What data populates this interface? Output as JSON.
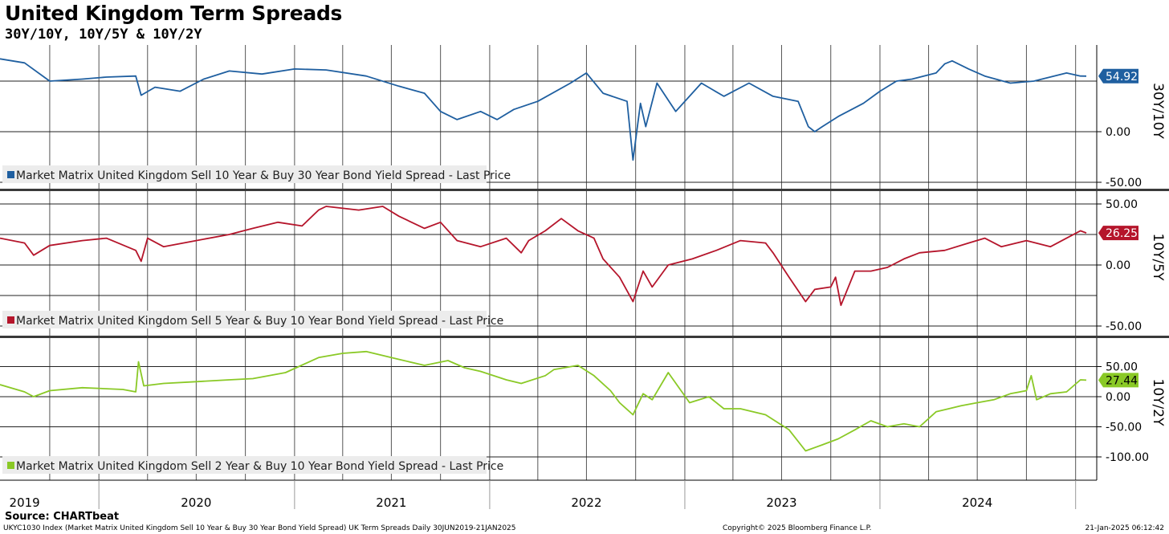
{
  "title": "United Kingdom Term Spreads",
  "subtitle": "30Y/10Y, 10Y/5Y & 10Y/2Y",
  "source": "Source: CHARTbeat",
  "footer": {
    "left": "UKYC1030 Index (Market Matrix United Kingdom Sell 10 Year & Buy 30 Year Bond Yield Spread) UK Term Spreads  Daily 30JUN2019-21JAN2025",
    "center": "Copyright© 2025 Bloomberg Finance L.P.",
    "right": "21-Jan-2025 06:12:42"
  },
  "chart_data": [
    {
      "type": "line",
      "axis_label": "30Y/10Y",
      "ylim": [
        -60,
        105
      ],
      "ytick_labels": [
        {
          "value": 0,
          "label": "0.00"
        },
        {
          "value": -50,
          "label": "-50.00"
        }
      ],
      "gridlines": [
        50,
        0,
        -50
      ],
      "series": [
        {
          "name": "Market Matrix United Kingdom Sell 10 Year & Buy 30 Year Bond Yield Spread - Last Price",
          "color": "#1f5fa0",
          "last_value_label": "54.92",
          "points": [
            [
              "2019-06-30",
              72
            ],
            [
              "2019-08-15",
              68
            ],
            [
              "2019-10-01",
              50
            ],
            [
              "2019-12-01",
              52
            ],
            [
              "2020-01-15",
              54
            ],
            [
              "2020-03-10",
              55
            ],
            [
              "2020-03-20",
              36
            ],
            [
              "2020-04-15",
              44
            ],
            [
              "2020-06-01",
              40
            ],
            [
              "2020-07-15",
              52
            ],
            [
              "2020-09-01",
              60
            ],
            [
              "2020-11-01",
              57
            ],
            [
              "2021-01-01",
              62
            ],
            [
              "2021-03-01",
              61
            ],
            [
              "2021-05-15",
              55
            ],
            [
              "2021-07-15",
              45
            ],
            [
              "2021-09-01",
              38
            ],
            [
              "2021-10-01",
              20
            ],
            [
              "2021-11-01",
              12
            ],
            [
              "2021-12-15",
              20
            ],
            [
              "2022-01-15",
              12
            ],
            [
              "2022-02-15",
              22
            ],
            [
              "2022-04-01",
              30
            ],
            [
              "2022-06-01",
              48
            ],
            [
              "2022-07-01",
              58
            ],
            [
              "2022-08-01",
              38
            ],
            [
              "2022-09-15",
              30
            ],
            [
              "2022-09-26",
              -28
            ],
            [
              "2022-10-10",
              28
            ],
            [
              "2022-10-20",
              5
            ],
            [
              "2022-11-10",
              48
            ],
            [
              "2022-12-15",
              20
            ],
            [
              "2023-02-01",
              48
            ],
            [
              "2023-03-15",
              35
            ],
            [
              "2023-05-01",
              48
            ],
            [
              "2023-06-15",
              35
            ],
            [
              "2023-08-01",
              30
            ],
            [
              "2023-08-20",
              5
            ],
            [
              "2023-09-01",
              0
            ],
            [
              "2023-09-15",
              5
            ],
            [
              "2023-10-15",
              15
            ],
            [
              "2023-12-01",
              28
            ],
            [
              "2024-01-01",
              40
            ],
            [
              "2024-02-01",
              50
            ],
            [
              "2024-03-01",
              52
            ],
            [
              "2024-04-15",
              58
            ],
            [
              "2024-05-01",
              67
            ],
            [
              "2024-05-15",
              70
            ],
            [
              "2024-06-15",
              62
            ],
            [
              "2024-07-15",
              55
            ],
            [
              "2024-09-01",
              48
            ],
            [
              "2024-10-15",
              50
            ],
            [
              "2024-12-15",
              58
            ],
            [
              "2025-01-10",
              55
            ],
            [
              "2025-01-21",
              54.92
            ]
          ]
        }
      ]
    },
    {
      "type": "line",
      "axis_label": "10Y/5Y",
      "ylim": [
        -55,
        55
      ],
      "ytick_labels": [
        {
          "value": 50,
          "label": "50.00"
        },
        {
          "value": 0,
          "label": "0.00"
        },
        {
          "value": -50,
          "label": "-50.00"
        }
      ],
      "gridlines": [
        50,
        25,
        0,
        -25,
        -50
      ],
      "series": [
        {
          "name": "Market Matrix United Kingdom Sell 5 Year & Buy 10 Year Bond Yield Spread - Last Price",
          "color": "#b5152b",
          "last_value_label": "26.25",
          "points": [
            [
              "2019-06-30",
              22
            ],
            [
              "2019-08-15",
              18
            ],
            [
              "2019-09-01",
              8
            ],
            [
              "2019-10-01",
              16
            ],
            [
              "2019-12-01",
              20
            ],
            [
              "2020-01-15",
              22
            ],
            [
              "2020-03-10",
              12
            ],
            [
              "2020-03-20",
              3
            ],
            [
              "2020-04-01",
              22
            ],
            [
              "2020-05-01",
              15
            ],
            [
              "2020-07-01",
              20
            ],
            [
              "2020-09-01",
              25
            ],
            [
              "2020-10-15",
              30
            ],
            [
              "2020-12-01",
              35
            ],
            [
              "2021-01-15",
              32
            ],
            [
              "2021-02-15",
              45
            ],
            [
              "2021-03-01",
              48
            ],
            [
              "2021-05-01",
              45
            ],
            [
              "2021-06-15",
              48
            ],
            [
              "2021-07-15",
              40
            ],
            [
              "2021-09-01",
              30
            ],
            [
              "2021-10-01",
              35
            ],
            [
              "2021-11-01",
              20
            ],
            [
              "2021-12-15",
              15
            ],
            [
              "2022-02-01",
              22
            ],
            [
              "2022-03-01",
              10
            ],
            [
              "2022-03-15",
              20
            ],
            [
              "2022-04-15",
              28
            ],
            [
              "2022-05-15",
              38
            ],
            [
              "2022-06-15",
              28
            ],
            [
              "2022-07-15",
              22
            ],
            [
              "2022-08-01",
              5
            ],
            [
              "2022-09-01",
              -10
            ],
            [
              "2022-09-26",
              -30
            ],
            [
              "2022-10-15",
              -5
            ],
            [
              "2022-11-01",
              -18
            ],
            [
              "2022-12-01",
              0
            ],
            [
              "2023-01-15",
              5
            ],
            [
              "2023-03-01",
              12
            ],
            [
              "2023-04-15",
              20
            ],
            [
              "2023-06-01",
              18
            ],
            [
              "2023-06-15",
              10
            ],
            [
              "2023-07-15",
              -10
            ],
            [
              "2023-08-15",
              -30
            ],
            [
              "2023-09-01",
              -20
            ],
            [
              "2023-10-01",
              -18
            ],
            [
              "2023-10-10",
              -10
            ],
            [
              "2023-10-20",
              -33
            ],
            [
              "2023-11-15",
              -5
            ],
            [
              "2023-12-15",
              -5
            ],
            [
              "2024-01-15",
              -2
            ],
            [
              "2024-02-15",
              5
            ],
            [
              "2024-03-15",
              10
            ],
            [
              "2024-05-01",
              12
            ],
            [
              "2024-06-15",
              18
            ],
            [
              "2024-07-15",
              22
            ],
            [
              "2024-08-15",
              15
            ],
            [
              "2024-10-01",
              20
            ],
            [
              "2024-11-15",
              15
            ],
            [
              "2024-12-15",
              22
            ],
            [
              "2025-01-10",
              28
            ],
            [
              "2025-01-21",
              26.25
            ]
          ]
        }
      ]
    },
    {
      "type": "line",
      "axis_label": "10Y/2Y",
      "ylim": [
        -120,
        90
      ],
      "ytick_labels": [
        {
          "value": 50,
          "label": "50.00"
        },
        {
          "value": 0,
          "label": "0.00"
        },
        {
          "value": -50,
          "label": "-50.00"
        },
        {
          "value": -100,
          "label": "-100.00"
        }
      ],
      "gridlines": [
        50,
        0,
        -50,
        -100
      ],
      "series": [
        {
          "name": "Market Matrix United Kingdom Sell 2 Year & Buy 10 Year Bond Yield Spread - Last Price",
          "color": "#8ac926",
          "last_value_label": "27.44",
          "points": [
            [
              "2019-06-30",
              20
            ],
            [
              "2019-08-15",
              8
            ],
            [
              "2019-09-01",
              0
            ],
            [
              "2019-10-01",
              10
            ],
            [
              "2019-12-01",
              15
            ],
            [
              "2020-02-15",
              12
            ],
            [
              "2020-03-10",
              8
            ],
            [
              "2020-03-15",
              58
            ],
            [
              "2020-03-25",
              18
            ],
            [
              "2020-05-01",
              22
            ],
            [
              "2020-07-01",
              25
            ],
            [
              "2020-09-01",
              28
            ],
            [
              "2020-10-15",
              30
            ],
            [
              "2020-12-15",
              40
            ],
            [
              "2021-02-15",
              65
            ],
            [
              "2021-04-01",
              72
            ],
            [
              "2021-05-15",
              75
            ],
            [
              "2021-07-15",
              62
            ],
            [
              "2021-09-01",
              52
            ],
            [
              "2021-10-15",
              60
            ],
            [
              "2021-11-15",
              48
            ],
            [
              "2021-12-15",
              42
            ],
            [
              "2022-02-01",
              28
            ],
            [
              "2022-03-01",
              22
            ],
            [
              "2022-04-15",
              35
            ],
            [
              "2022-05-01",
              45
            ],
            [
              "2022-06-15",
              52
            ],
            [
              "2022-07-15",
              35
            ],
            [
              "2022-08-15",
              10
            ],
            [
              "2022-09-01",
              -10
            ],
            [
              "2022-09-26",
              -30
            ],
            [
              "2022-10-15",
              5
            ],
            [
              "2022-11-01",
              -5
            ],
            [
              "2022-12-01",
              40
            ],
            [
              "2023-01-10",
              -10
            ],
            [
              "2023-02-15",
              0
            ],
            [
              "2023-03-15",
              -20
            ],
            [
              "2023-04-15",
              -20
            ],
            [
              "2023-06-01",
              -30
            ],
            [
              "2023-07-15",
              -55
            ],
            [
              "2023-08-15",
              -90
            ],
            [
              "2023-09-15",
              -80
            ],
            [
              "2023-10-15",
              -70
            ],
            [
              "2023-11-15",
              -55
            ],
            [
              "2023-12-15",
              -40
            ],
            [
              "2024-01-15",
              -50
            ],
            [
              "2024-02-15",
              -45
            ],
            [
              "2024-03-15",
              -50
            ],
            [
              "2024-04-15",
              -25
            ],
            [
              "2024-06-01",
              -15
            ],
            [
              "2024-07-01",
              -10
            ],
            [
              "2024-08-01",
              -5
            ],
            [
              "2024-09-01",
              5
            ],
            [
              "2024-10-01",
              10
            ],
            [
              "2024-10-10",
              35
            ],
            [
              "2024-10-20",
              -5
            ],
            [
              "2024-11-15",
              5
            ],
            [
              "2024-12-15",
              8
            ],
            [
              "2025-01-10",
              28
            ],
            [
              "2025-01-21",
              27.44
            ]
          ]
        }
      ]
    }
  ],
  "x_axis": {
    "labels": [
      "2019",
      "2020",
      "2021",
      "2022",
      "2023",
      "2024"
    ],
    "label_dates": [
      "2019-08-15",
      "2020-07-01",
      "2021-07-01",
      "2022-07-01",
      "2023-07-01",
      "2024-07-01"
    ],
    "year_boundaries": [
      "2020-01-01",
      "2021-01-01",
      "2022-01-01",
      "2023-01-01",
      "2024-01-01",
      "2025-01-01"
    ],
    "quarter_lines": [
      "2019-10-01",
      "2020-01-01",
      "2020-04-01",
      "2020-07-01",
      "2020-10-01",
      "2021-01-01",
      "2021-04-01",
      "2021-07-01",
      "2021-10-01",
      "2022-01-01",
      "2022-04-01",
      "2022-07-01",
      "2022-10-01",
      "2023-01-01",
      "2023-04-01",
      "2023-07-01",
      "2023-10-01",
      "2024-01-01",
      "2024-04-01",
      "2024-07-01",
      "2024-10-01",
      "2025-01-01"
    ],
    "start": "2019-06-30",
    "end": "2025-01-21"
  }
}
